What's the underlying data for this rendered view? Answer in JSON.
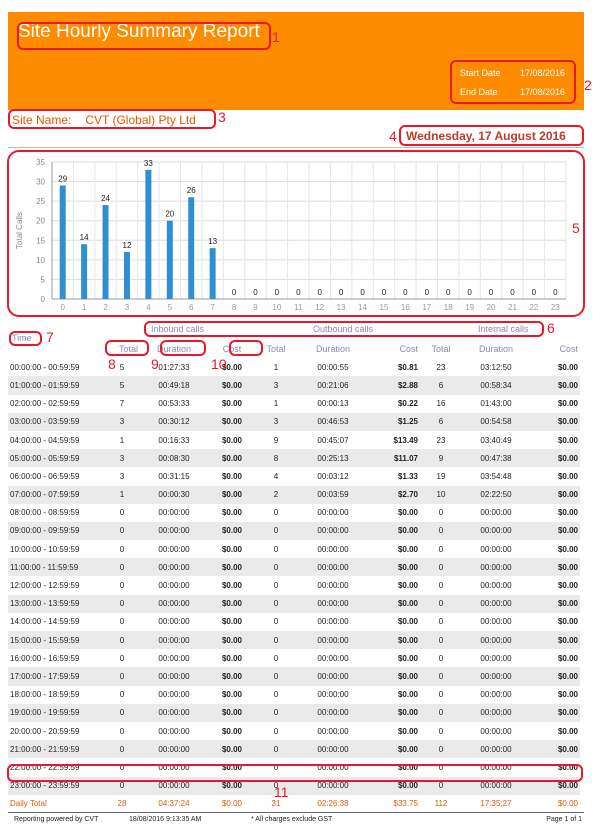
{
  "report": {
    "title": "Site Hourly Summary Report",
    "start_label": "Start Date",
    "start_value": "17/08/2016",
    "end_label": "End Date",
    "end_value": "17/08/2016",
    "site_label": "Site Name:",
    "site_value": "CVT (Global) Pty Ltd",
    "report_day": "Wednesday, 17 August 2016"
  },
  "annotations": [
    "1",
    "2",
    "3",
    "4",
    "5",
    "6",
    "7",
    "8",
    "9",
    "10",
    "11"
  ],
  "chart_data": {
    "type": "bar",
    "ylabel": "Total Calls",
    "ylim": [
      0,
      35
    ],
    "yticks": [
      0,
      5,
      10,
      15,
      20,
      25,
      30,
      35
    ],
    "grid": true,
    "categories": [
      "0",
      "1",
      "2",
      "3",
      "4",
      "5",
      "6",
      "7",
      "8",
      "9",
      "10",
      "11",
      "12",
      "13",
      "14",
      "15",
      "16",
      "17",
      "18",
      "19",
      "20",
      "21",
      "22",
      "23"
    ],
    "values": [
      29,
      14,
      24,
      12,
      33,
      20,
      26,
      13,
      0,
      0,
      0,
      0,
      0,
      0,
      0,
      0,
      0,
      0,
      0,
      0,
      0,
      0,
      0,
      0
    ],
    "bar_color": "#2f8fd0"
  },
  "table": {
    "groups": {
      "inbound": "Inbound calls",
      "outbound": "Outbound calls",
      "internal": "Internal calls"
    },
    "time_header": "Time",
    "columns": [
      "Total",
      "Duration",
      "Cost",
      "Total",
      "Duration",
      "Cost",
      "Total",
      "Duration",
      "Cost"
    ],
    "rows": [
      [
        "00:00:00 - 00:59:59",
        "5",
        "01:27:33",
        "$0.00",
        "1",
        "00:00:55",
        "$0.81",
        "23",
        "03:12:50",
        "$0.00"
      ],
      [
        "01:00:00 - 01:59:59",
        "5",
        "00:49:18",
        "$0.00",
        "3",
        "00:21:06",
        "$2.88",
        "6",
        "00:58:34",
        "$0.00"
      ],
      [
        "02:00:00 - 02:59:59",
        "7",
        "00:53:33",
        "$0.00",
        "1",
        "00:00:13",
        "$0.22",
        "16",
        "01:43:00",
        "$0.00"
      ],
      [
        "03:00:00 - 03:59:59",
        "3",
        "00:30:12",
        "$0.00",
        "3",
        "00:46:53",
        "$1.25",
        "6",
        "00:54:58",
        "$0.00"
      ],
      [
        "04:00:00 - 04:59:59",
        "1",
        "00:16:33",
        "$0.00",
        "9",
        "00:45:07",
        "$13.49",
        "23",
        "03:40:49",
        "$0.00"
      ],
      [
        "05:00:00 - 05:59:59",
        "3",
        "00:08:30",
        "$0.00",
        "8",
        "00:25:13",
        "$11.07",
        "9",
        "00:47:38",
        "$0.00"
      ],
      [
        "06:00:00 - 06:59:59",
        "3",
        "00:31:15",
        "$0.00",
        "4",
        "00:03:12",
        "$1.33",
        "19",
        "03:54:48",
        "$0.00"
      ],
      [
        "07:00:00 - 07:59:59",
        "1",
        "00:00:30",
        "$0.00",
        "2",
        "00:03:59",
        "$2.70",
        "10",
        "02:22:50",
        "$0.00"
      ],
      [
        "08:00:00 - 08:59:59",
        "0",
        "00:00:00",
        "$0.00",
        "0",
        "00:00:00",
        "$0.00",
        "0",
        "00:00:00",
        "$0.00"
      ],
      [
        "09:00:00 - 09:59:59",
        "0",
        "00:00:00",
        "$0.00",
        "0",
        "00:00:00",
        "$0.00",
        "0",
        "00:00:00",
        "$0.00"
      ],
      [
        "10:00:00 - 10:59:59",
        "0",
        "00:00:00",
        "$0.00",
        "0",
        "00:00:00",
        "$0.00",
        "0",
        "00:00:00",
        "$0.00"
      ],
      [
        "11:00:00 - 11:59:59",
        "0",
        "00:00:00",
        "$0.00",
        "0",
        "00:00:00",
        "$0.00",
        "0",
        "00:00:00",
        "$0.00"
      ],
      [
        "12:00:00 - 12:59:59",
        "0",
        "00:00:00",
        "$0.00",
        "0",
        "00:00:00",
        "$0.00",
        "0",
        "00:00:00",
        "$0.00"
      ],
      [
        "13:00:00 - 13:59:59",
        "0",
        "00:00:00",
        "$0.00",
        "0",
        "00:00:00",
        "$0.00",
        "0",
        "00:00:00",
        "$0.00"
      ],
      [
        "14:00:00 - 14:59:59",
        "0",
        "00:00:00",
        "$0.00",
        "0",
        "00:00:00",
        "$0.00",
        "0",
        "00:00:00",
        "$0.00"
      ],
      [
        "15:00:00 - 15:59:59",
        "0",
        "00:00:00",
        "$0.00",
        "0",
        "00:00:00",
        "$0.00",
        "0",
        "00:00:00",
        "$0.00"
      ],
      [
        "16:00:00 - 16:59:59",
        "0",
        "00:00:00",
        "$0.00",
        "0",
        "00:00:00",
        "$0.00",
        "0",
        "00:00:00",
        "$0.00"
      ],
      [
        "17:00:00 - 17:59:59",
        "0",
        "00:00:00",
        "$0.00",
        "0",
        "00:00:00",
        "$0.00",
        "0",
        "00:00:00",
        "$0.00"
      ],
      [
        "18:00:00 - 18:59:59",
        "0",
        "00:00:00",
        "$0.00",
        "0",
        "00:00:00",
        "$0.00",
        "0",
        "00:00:00",
        "$0.00"
      ],
      [
        "19:00:00 - 19:59:59",
        "0",
        "00:00:00",
        "$0.00",
        "0",
        "00:00:00",
        "$0.00",
        "0",
        "00:00:00",
        "$0.00"
      ],
      [
        "20:00:00 - 20:59:59",
        "0",
        "00:00:00",
        "$0.00",
        "0",
        "00:00:00",
        "$0.00",
        "0",
        "00:00:00",
        "$0.00"
      ],
      [
        "21:00:00 - 21:59:59",
        "0",
        "00:00:00",
        "$0.00",
        "0",
        "00:00:00",
        "$0.00",
        "0",
        "00:00:00",
        "$0.00"
      ],
      [
        "22:00:00 - 22:59:59",
        "0",
        "00:00:00",
        "$0.00",
        "0",
        "00:00:00",
        "$0.00",
        "0",
        "00:00:00",
        "$0.00"
      ],
      [
        "23:00:00 - 23:59:59",
        "0",
        "00:00:00",
        "$0.00",
        "0",
        "00:00:00",
        "$0.00",
        "0",
        "00:00:00",
        "$0.00"
      ]
    ],
    "total_row": [
      "Daily Total",
      "28",
      "04:37:24",
      "$0.00",
      "31",
      "02:26:38",
      "$33.75",
      "112",
      "17:35:27",
      "$0.00"
    ]
  },
  "footer": {
    "powered_by": "Reporting powered by CVT",
    "generated": "18/08/2016 9:13:35 AM",
    "note": "* All charges exclude GST",
    "page": "Page 1 of 1"
  },
  "colors": {
    "header": "#ff8c00",
    "accent": "#e05a00",
    "annotation": "#e8192c"
  }
}
